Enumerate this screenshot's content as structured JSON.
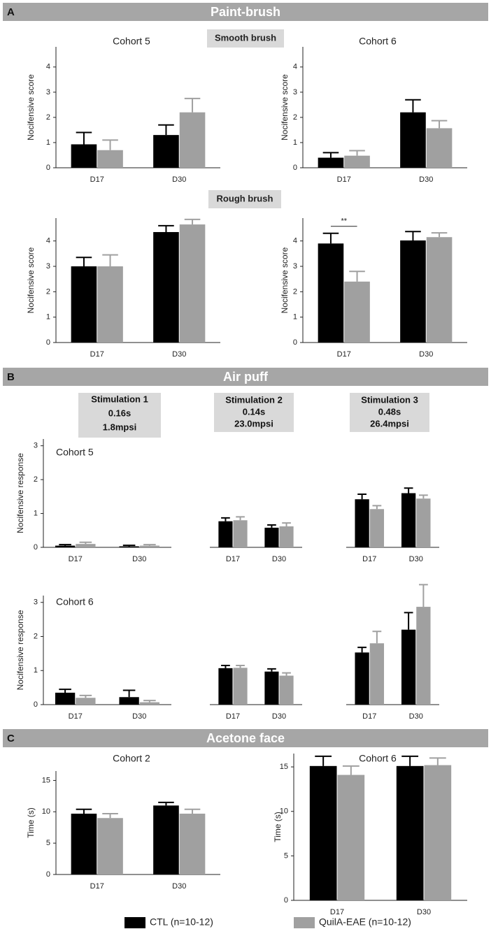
{
  "sections": [
    {
      "letter": "A",
      "title": "Paint-brush"
    },
    {
      "letter": "B",
      "title": "Air puff"
    },
    {
      "letter": "C",
      "title": "Acetone face"
    }
  ],
  "subtitles": [
    "Smooth brush",
    "Rough brush"
  ],
  "stimulations": [
    {
      "name": "Stimulation 1",
      "duration": "0.16s",
      "pressure": "1.8mpsi"
    },
    {
      "name": "Stimulation 2",
      "duration": "0.14s",
      "pressure": "23.0mpsi"
    },
    {
      "name": "Stimulation 3",
      "duration": "0.48s",
      "pressure": "26.4mpsi"
    }
  ],
  "legend": [
    {
      "name": "CTL (n=10-12)",
      "color": "#000000"
    },
    {
      "name": "QuilA-EAE (n=10-12)",
      "color": "#a0a0a0"
    }
  ],
  "chart_data": [
    {
      "type": "bar",
      "title": "Cohort 5",
      "ylabel": "Nocifensive score",
      "categories": [
        "D17",
        "D30"
      ],
      "series": [
        {
          "color": "#000000",
          "values": [
            0.93,
            1.3
          ],
          "errors": [
            0.47,
            0.4
          ]
        },
        {
          "color": "#a0a0a0",
          "values": [
            0.7,
            2.2
          ],
          "errors": [
            0.4,
            0.55
          ]
        }
      ],
      "ylim": [
        0,
        4.8
      ],
      "yticks": [
        0,
        1,
        2,
        3,
        4
      ]
    },
    {
      "type": "bar",
      "title": "Cohort 6",
      "ylabel": "Nocifensive score",
      "categories": [
        "D17",
        "D30"
      ],
      "series": [
        {
          "color": "#000000",
          "values": [
            0.4,
            2.2
          ],
          "errors": [
            0.2,
            0.5
          ]
        },
        {
          "color": "#a0a0a0",
          "values": [
            0.48,
            1.57
          ],
          "errors": [
            0.2,
            0.3
          ]
        }
      ],
      "ylim": [
        0,
        4.8
      ],
      "yticks": [
        0,
        1,
        2,
        3,
        4
      ]
    },
    {
      "type": "bar",
      "ylabel": "Nocifensive score",
      "categories": [
        "D17",
        "D30"
      ],
      "series": [
        {
          "color": "#000000",
          "values": [
            3.0,
            4.35
          ],
          "errors": [
            0.35,
            0.25
          ]
        },
        {
          "color": "#a0a0a0",
          "values": [
            3.0,
            4.65
          ],
          "errors": [
            0.45,
            0.2
          ]
        }
      ],
      "ylim": [
        0,
        4.9
      ],
      "yticks": [
        0,
        1,
        2,
        3,
        4
      ]
    },
    {
      "type": "bar",
      "ylabel": "Nocifensive score",
      "categories": [
        "D17",
        "D30"
      ],
      "series": [
        {
          "color": "#000000",
          "values": [
            3.9,
            4.02
          ],
          "errors": [
            0.4,
            0.35
          ]
        },
        {
          "color": "#a0a0a0",
          "values": [
            2.4,
            4.15
          ],
          "errors": [
            0.4,
            0.17
          ]
        }
      ],
      "ylim": [
        0,
        4.9
      ],
      "yticks": [
        0,
        1,
        2,
        3,
        4
      ],
      "annotation": "**"
    },
    {
      "type": "bar",
      "title": "Cohort 5",
      "ylabel": "Nocifensive response",
      "categories": [
        "D17",
        "D30"
      ],
      "series": [
        {
          "color": "#000000",
          "values": [
            0.05,
            0.03
          ],
          "errors": [
            0.03,
            0.03
          ]
        },
        {
          "color": "#a0a0a0",
          "values": [
            0.1,
            0.05
          ],
          "errors": [
            0.05,
            0.03
          ]
        }
      ],
      "ylim": [
        0,
        3.2
      ],
      "yticks": [
        0,
        1,
        2,
        3
      ]
    },
    {
      "type": "bar",
      "categories": [
        "D17",
        "D30"
      ],
      "series": [
        {
          "color": "#000000",
          "values": [
            0.77,
            0.58
          ],
          "errors": [
            0.1,
            0.08
          ]
        },
        {
          "color": "#a0a0a0",
          "values": [
            0.8,
            0.62
          ],
          "errors": [
            0.1,
            0.1
          ]
        }
      ],
      "ylim": [
        0,
        3.2
      ]
    },
    {
      "type": "bar",
      "categories": [
        "D17",
        "D30"
      ],
      "series": [
        {
          "color": "#000000",
          "values": [
            1.42,
            1.6
          ],
          "errors": [
            0.15,
            0.15
          ]
        },
        {
          "color": "#a0a0a0",
          "values": [
            1.13,
            1.44
          ],
          "errors": [
            0.1,
            0.1
          ]
        }
      ],
      "ylim": [
        0,
        3.2
      ]
    },
    {
      "type": "bar",
      "title": "Cohort 6",
      "ylabel": "Nocifensive response",
      "categories": [
        "D17",
        "D30"
      ],
      "series": [
        {
          "color": "#000000",
          "values": [
            0.35,
            0.22
          ],
          "errors": [
            0.1,
            0.2
          ]
        },
        {
          "color": "#a0a0a0",
          "values": [
            0.2,
            0.07
          ],
          "errors": [
            0.07,
            0.05
          ]
        }
      ],
      "ylim": [
        0,
        3.2
      ],
      "yticks": [
        0,
        1,
        2,
        3
      ]
    },
    {
      "type": "bar",
      "categories": [
        "D17",
        "D30"
      ],
      "series": [
        {
          "color": "#000000",
          "values": [
            1.07,
            0.97
          ],
          "errors": [
            0.08,
            0.08
          ]
        },
        {
          "color": "#a0a0a0",
          "values": [
            1.08,
            0.85
          ],
          "errors": [
            0.07,
            0.08
          ]
        }
      ],
      "ylim": [
        0,
        3.2
      ]
    },
    {
      "type": "bar",
      "categories": [
        "D17",
        "D30"
      ],
      "series": [
        {
          "color": "#000000",
          "values": [
            1.53,
            2.2
          ],
          "errors": [
            0.15,
            0.5
          ]
        },
        {
          "color": "#a0a0a0",
          "values": [
            1.8,
            2.87
          ],
          "errors": [
            0.35,
            0.65
          ]
        }
      ],
      "ylim": [
        0,
        3.2
      ]
    },
    {
      "type": "bar",
      "title": "Cohort 2",
      "ylabel": "Time (s)",
      "categories": [
        "D17",
        "D30"
      ],
      "series": [
        {
          "color": "#000000",
          "values": [
            9.7,
            11.0
          ],
          "errors": [
            0.7,
            0.5
          ]
        },
        {
          "color": "#a0a0a0",
          "values": [
            9.0,
            9.7
          ],
          "errors": [
            0.7,
            0.7
          ]
        }
      ],
      "ylim": [
        0,
        16.5
      ],
      "yticks": [
        0,
        5,
        10,
        15
      ]
    },
    {
      "type": "bar",
      "title": "Cohort 6",
      "ylabel": "Time (s)",
      "categories": [
        "D17",
        "D30"
      ],
      "series": [
        {
          "color": "#000000",
          "values": [
            15.1,
            15.1
          ],
          "errors": [
            1.1,
            1.1
          ]
        },
        {
          "color": "#a0a0a0",
          "values": [
            14.1,
            15.2
          ],
          "errors": [
            1.0,
            0.8
          ]
        }
      ],
      "ylim": [
        0,
        16.5
      ],
      "yticks": [
        0,
        5,
        10,
        15
      ]
    }
  ]
}
